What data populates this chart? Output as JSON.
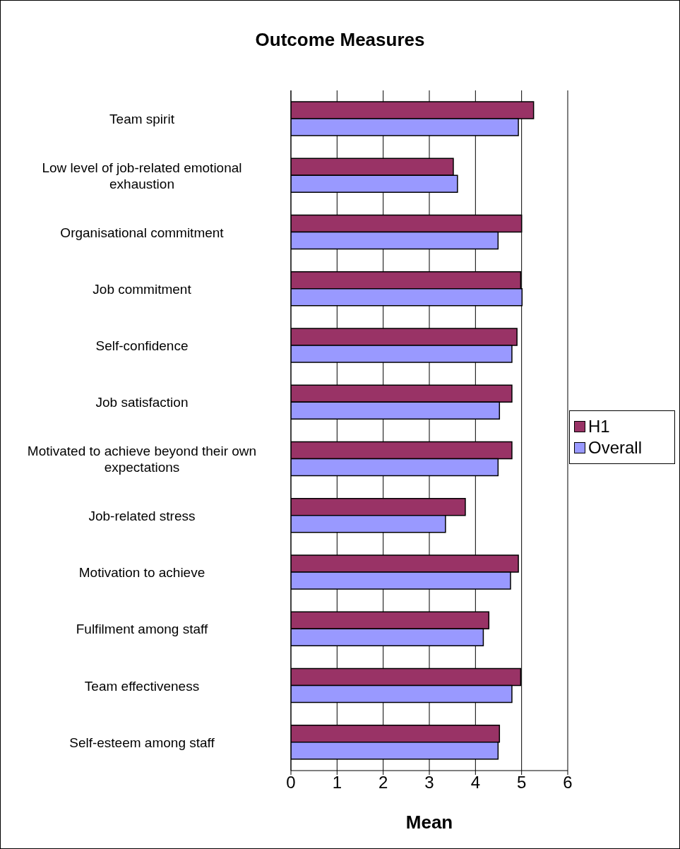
{
  "chart_data": {
    "type": "bar",
    "orientation": "horizontal",
    "title": "Outcome Measures",
    "xlabel": "Mean",
    "categories": [
      "Team spirit",
      "Low level of job-related emotional exhaustion",
      "Organisational commitment",
      "Job commitment",
      "Self-confidence",
      "Job satisfaction",
      "Motivated to achieve beyond their own expectations",
      "Job-related stress",
      "Motivation to achieve",
      "Fulfilment among staff",
      "Team effectiveness",
      "Self-esteem among staff"
    ],
    "series": [
      {
        "name": "H1",
        "color": "#993366",
        "values": [
          5.26,
          3.52,
          5.0,
          4.98,
          4.9,
          4.79,
          4.79,
          3.78,
          4.93,
          4.29,
          4.98,
          4.52
        ]
      },
      {
        "name": "Overall",
        "color": "#9999ff",
        "values": [
          4.93,
          3.61,
          4.49,
          5.01,
          4.79,
          4.52,
          4.49,
          3.35,
          4.76,
          4.17,
          4.79,
          4.49
        ]
      }
    ],
    "xlim": [
      0,
      6
    ],
    "xticks": [
      0,
      1,
      2,
      3,
      4,
      5,
      6
    ],
    "grid": "x",
    "legend": "right"
  }
}
